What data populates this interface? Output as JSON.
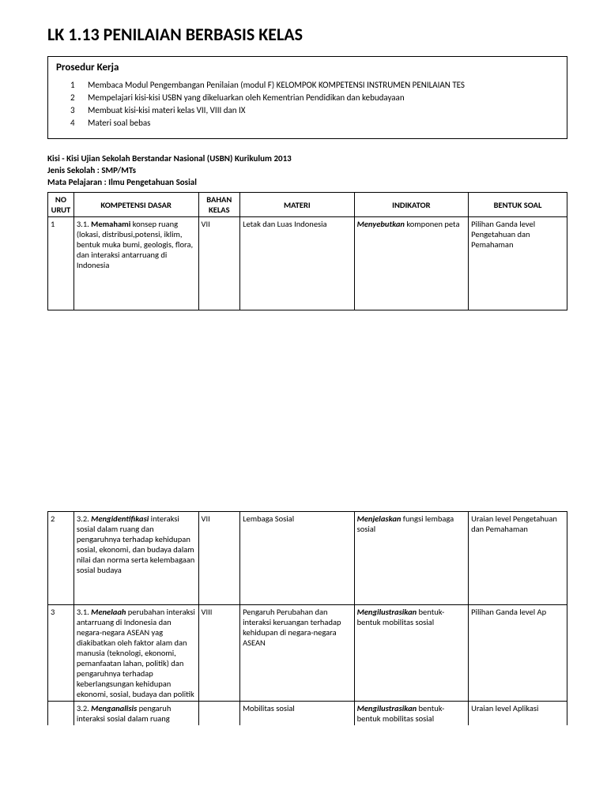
{
  "title": "LK 1.13  PENILAIAN BERBASIS KELAS",
  "prosedur": {
    "heading": "Prosedur Kerja",
    "items": [
      "Membaca Modul Pengembangan Penilaian (modul F) KELOMPOK KOMPETENSI INSTRUMEN PENILAIAN TES",
      "Mempelajari kisi-kisi USBN yang dikeluarkan oleh Kementrian Pendidikan dan kebudayaan",
      "Membuat kisi-kisi materi kelas VII, VIII dan IX",
      "Materi soal bebas"
    ]
  },
  "meta": {
    "line1": "Kisi - Kisi Ujian Sekolah Berstandar Nasional (USBN)  Kurikulum 2013",
    "line2": "Jenis Sekolah : SMP/MTs",
    "line3": "Mata Pelajaran :  Ilmu Pengetahuan Sosial"
  },
  "table": {
    "headers": {
      "no": "NO URUT",
      "kd": "KOMPETENSI DASAR",
      "bk": "BAHAN KELAS",
      "mat": "MATERI",
      "ind": "INDIKATOR",
      "bs": "BENTUK SOAL"
    },
    "rows": [
      {
        "no": "1",
        "kd_code": "3.1. ",
        "kd_lead_b": "Memahami",
        "kd_rest": " konsep ruang (lokasi, distribusi,potensi, iklim, bentuk muka bumi, geologis, flora, dan interaksi antarruang di Indonesia",
        "bk": "VII",
        "mat": "Letak dan Luas Indonesia",
        "ind_lead": "Menyebutkan",
        "ind_rest": " komponen peta",
        "bs": "Pilihan Ganda level Pengetahuan dan Pemahaman",
        "tall": true
      },
      {
        "no": "2",
        "kd_code": "3.2. ",
        "kd_lead_bi": "Mengidentifikasi",
        "kd_rest": " interaksi sosial dalam ruang dan pengaruhnya terhadap kehidupan sosial, ekonomi, dan budaya dalam nilai dan norma serta kelembagaan sosial budaya",
        "bk": "VII",
        "mat": "Lembaga Sosial",
        "ind_lead": "Menjelaskan",
        "ind_rest": " fungsi lembaga sosial",
        "bs": "Uraian level Pengetahuan dan Pemahaman",
        "tall": true
      },
      {
        "no": "3",
        "kd_code": "3.1. ",
        "kd_lead_bi": "Menelaah",
        "kd_rest": " perubahan interaksi antarruang di Indonesia dan negara-negara ASEAN yag diakibatkan oleh faktor alam dan manusia (teknologi, ekonomi, pemanfaatan lahan, politik) dan pengaruhnya terhadap keberlangsungan kehidupan ekonomi, sosial, budaya dan politik",
        "bk": "VIII",
        "mat": "Pengaruh Perubahan dan interaksi keruangan terhadap kehidupan di negara-negara ASEAN",
        "ind_lead": "Mengilustrasikan",
        "ind_rest": " bentuk-bentuk mobilitas sosial",
        "bs": "Pilihan Ganda  level Ap",
        "tall": false
      },
      {
        "no": "",
        "kd_code": "3.2. ",
        "kd_lead_bi": "Menganalisis",
        "kd_rest": " pengaruh interaksi sosial dalam ruang",
        "bk": "",
        "mat": "Mobilitas sosial",
        "ind_lead": "Mengilustrasikan",
        "ind_rest": " bentuk-bentuk mobilitas sosial",
        "bs": "Uraian level Aplikasi",
        "tall": false,
        "cut": true
      }
    ]
  },
  "colors": {
    "text": "#000000",
    "background": "#ffffff",
    "border": "#000000"
  }
}
